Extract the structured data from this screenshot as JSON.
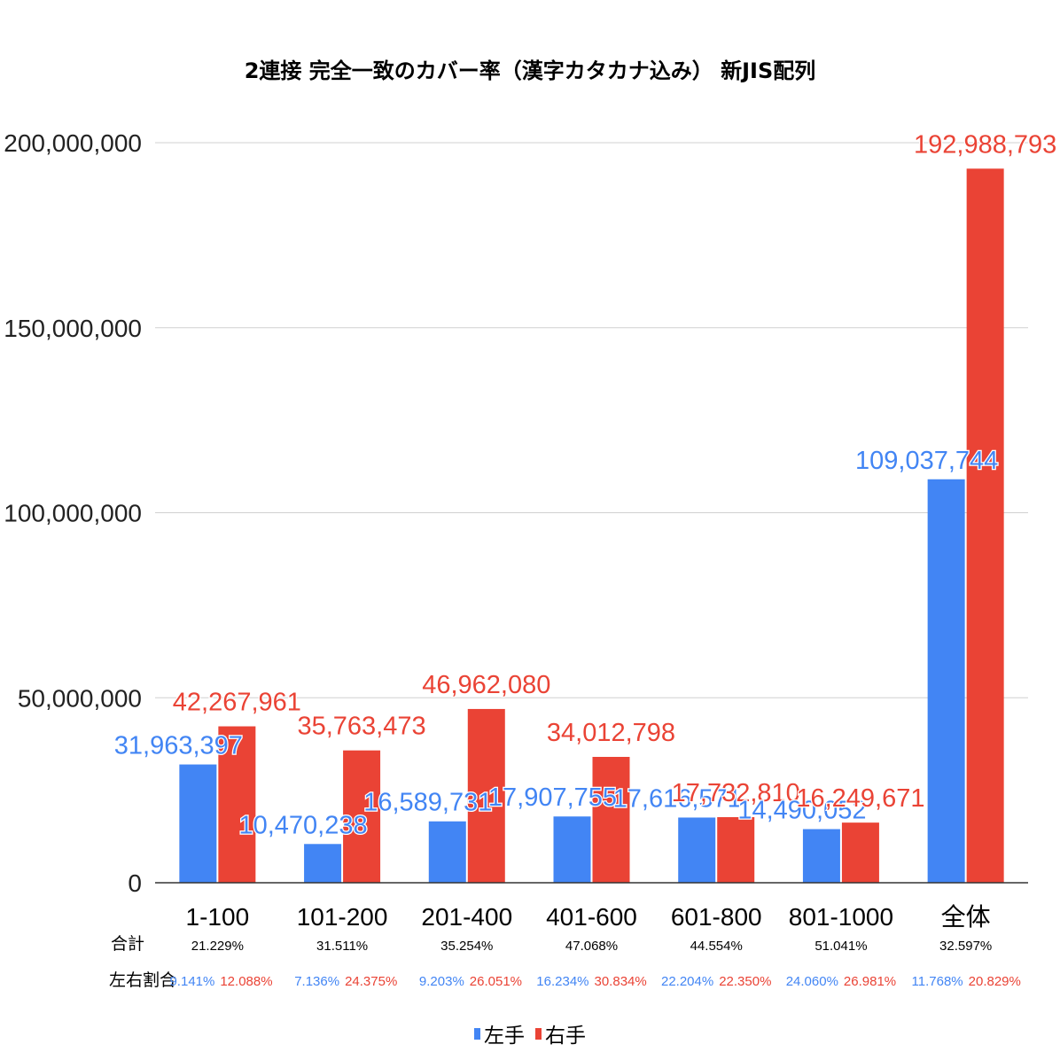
{
  "chart_data": {
    "type": "bar",
    "title": "2連接 完全一致のカバー率（漢字カタカナ込み） 新JIS配列",
    "categories": [
      "1-100",
      "101-200",
      "201-400",
      "401-600",
      "601-800",
      "801-1000",
      "全体"
    ],
    "series": [
      {
        "name": "左手",
        "color": "#4285f4",
        "values": [
          31963397,
          10470238,
          16589731,
          17907755,
          17616571,
          14490052,
          109037744
        ],
        "labels": [
          "31,963,397",
          "10,470,238",
          "16,589,731",
          "17,907,755",
          "17,616,571",
          "14,490,052",
          "109,037,744"
        ]
      },
      {
        "name": "右手",
        "color": "#ea4335",
        "values": [
          42267961,
          35763473,
          46962080,
          34012798,
          17732810,
          16249671,
          192988793
        ],
        "labels": [
          "42,267,961",
          "35,763,473",
          "46,962,080",
          "34,012,798",
          "17,732,810",
          "16,249,671",
          "192,988,793"
        ]
      }
    ],
    "ylim": [
      0,
      200000000
    ],
    "yticks": [
      0,
      50000000,
      100000000,
      150000000,
      200000000
    ],
    "ytick_labels": [
      "0",
      "50,000,000",
      "100,000,000",
      "150,000,000",
      "200,000,000"
    ],
    "grid": true,
    "legend": "bottom"
  },
  "table": {
    "total_label": "合計",
    "ratio_label": "左右割合",
    "totals": [
      "21.229%",
      "31.511%",
      "35.254%",
      "47.068%",
      "44.554%",
      "51.041%",
      "32.597%"
    ],
    "left_ratio": [
      "9.141%",
      "7.136%",
      "9.203%",
      "16.234%",
      "22.204%",
      "24.060%",
      "11.768%"
    ],
    "right_ratio": [
      "12.088%",
      "24.375%",
      "26.051%",
      "30.834%",
      "22.350%",
      "26.981%",
      "20.829%"
    ]
  },
  "colors": {
    "left": "#4285f4",
    "right": "#ea4335",
    "grid": "#d0d0d0",
    "axis": "#333333"
  }
}
